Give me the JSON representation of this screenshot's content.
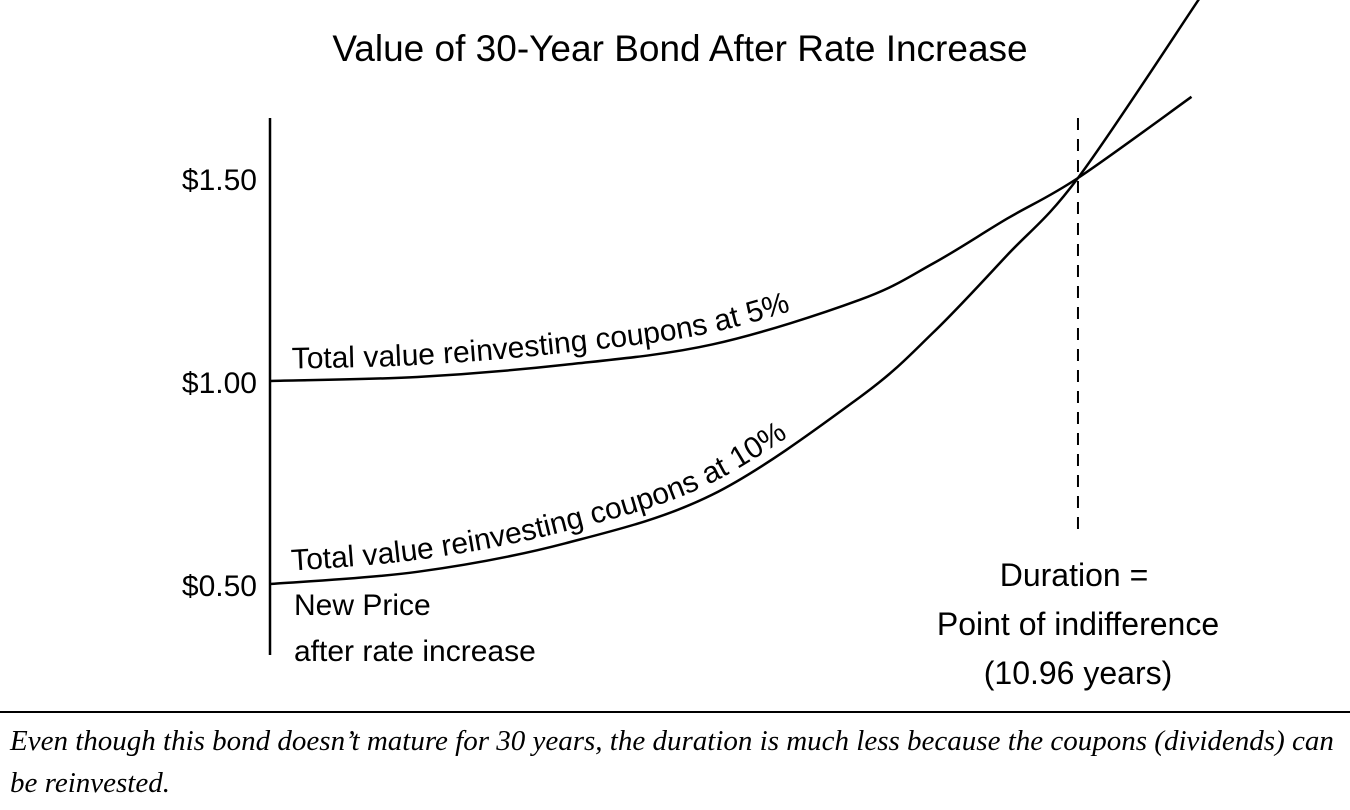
{
  "chart_data": {
    "type": "line",
    "title": "Value of 30-Year Bond After Rate Increase",
    "xlabel": "",
    "ylabel": "",
    "y_tick_labels": [
      "$1.50",
      "$1.00",
      "$0.50"
    ],
    "y_ticks": [
      1.5,
      1.0,
      0.5
    ],
    "ylim": [
      0.32,
      1.95
    ],
    "xlim": [
      0,
      12.6
    ],
    "grid": false,
    "series": [
      {
        "name": "Total value reinvesting coupons at 5%",
        "x": [
          0,
          2,
          4,
          6,
          8,
          9,
          10,
          10.96,
          12.5
        ],
        "y": [
          1.0,
          1.01,
          1.04,
          1.09,
          1.2,
          1.29,
          1.4,
          1.5,
          1.7
        ]
      },
      {
        "name": "Total value reinvesting coupons at 10%",
        "x": [
          0,
          2,
          4,
          6,
          8,
          9,
          10,
          10.96,
          12.6
        ],
        "y": [
          0.5,
          0.53,
          0.6,
          0.72,
          0.96,
          1.12,
          1.31,
          1.5,
          1.94
        ]
      }
    ],
    "annotations": {
      "start_label_line1": "New Price",
      "start_label_line2": "after rate increase",
      "duration_x": 10.96,
      "duration_line1": "Duration =",
      "duration_line2": "Point of indifference",
      "duration_line3": "(10.96 years)"
    }
  },
  "caption": "Even though this bond doesn’t mature for 30 years, the duration is much less because the coupons (dividends) can be reinvested."
}
